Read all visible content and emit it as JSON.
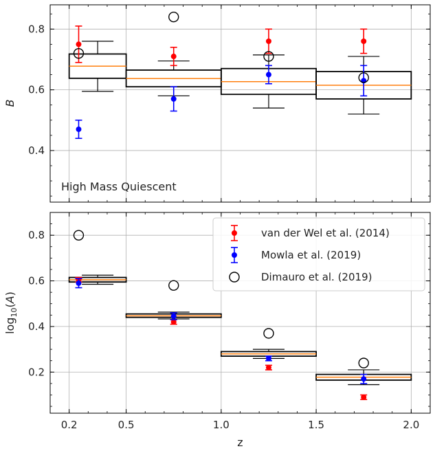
{
  "chart_data": [
    {
      "type": "box+errorbar",
      "annotation": "High Mass Quiescent",
      "ylabel": "B",
      "xlabel": "",
      "xlim": [
        0.1,
        2.1
      ],
      "ylim": [
        0.23,
        0.88
      ],
      "yticks": [
        "0.4",
        "0.6",
        "0.8"
      ],
      "ytick_values": [
        0.4,
        0.6,
        0.8
      ],
      "boxes": [
        {
          "x0": 0.2,
          "x1": 0.5,
          "q1": 0.638,
          "q3": 0.718,
          "median": 0.678,
          "wlo": 0.595,
          "whi": 0.76
        },
        {
          "x0": 0.5,
          "x1": 1.0,
          "q1": 0.61,
          "q3": 0.665,
          "median": 0.637,
          "wlo": 0.58,
          "whi": 0.695
        },
        {
          "x0": 1.0,
          "x1": 1.5,
          "q1": 0.585,
          "q3": 0.67,
          "median": 0.627,
          "wlo": 0.54,
          "whi": 0.715
        },
        {
          "x0": 1.5,
          "x1": 2.0,
          "q1": 0.57,
          "q3": 0.66,
          "median": 0.615,
          "wlo": 0.52,
          "whi": 0.71
        }
      ],
      "series": [
        {
          "name": "van der Wel et al. (2014)",
          "color": "#ff0000",
          "x": [
            0.25,
            0.75,
            1.25,
            1.75
          ],
          "y": [
            0.75,
            0.71,
            0.76,
            0.76
          ],
          "err": [
            0.06,
            0.03,
            0.04,
            0.04
          ]
        },
        {
          "name": "Mowla et al. (2019)",
          "color": "#0000ff",
          "x": [
            0.25,
            0.75,
            1.25,
            1.75
          ],
          "y": [
            0.47,
            0.57,
            0.65,
            0.63
          ],
          "err": [
            0.03,
            0.04,
            0.03,
            0.05
          ]
        },
        {
          "name": "Dimauro et al. (2019)",
          "color": "#000000",
          "x": [
            0.25,
            0.75,
            1.25,
            1.75
          ],
          "y": [
            0.72,
            0.84,
            0.71,
            0.64
          ],
          "err": [
            0,
            0,
            0,
            0
          ]
        }
      ]
    },
    {
      "type": "box+errorbar",
      "annotation": "",
      "ylabel": "log10(A)",
      "xlabel": "z",
      "xlim": [
        0.1,
        2.1
      ],
      "ylim": [
        0.02,
        0.9
      ],
      "xticks": [
        "0.2",
        "0.5",
        "1.0",
        "1.5",
        "2.0"
      ],
      "xtick_values": [
        0.2,
        0.5,
        1.0,
        1.5,
        2.0
      ],
      "yticks": [
        "0.2",
        "0.4",
        "0.6",
        "0.8"
      ],
      "ytick_values": [
        0.2,
        0.4,
        0.6,
        0.8
      ],
      "boxes": [
        {
          "x0": 0.2,
          "x1": 0.5,
          "q1": 0.595,
          "q3": 0.615,
          "median": 0.605,
          "wlo": 0.585,
          "whi": 0.625
        },
        {
          "x0": 0.5,
          "x1": 1.0,
          "q1": 0.44,
          "q3": 0.455,
          "median": 0.447,
          "wlo": 0.433,
          "whi": 0.463
        },
        {
          "x0": 1.0,
          "x1": 1.5,
          "q1": 0.27,
          "q3": 0.29,
          "median": 0.28,
          "wlo": 0.26,
          "whi": 0.3
        },
        {
          "x0": 1.5,
          "x1": 2.0,
          "q1": 0.165,
          "q3": 0.19,
          "median": 0.178,
          "wlo": 0.145,
          "whi": 0.21
        }
      ],
      "series": [
        {
          "name": "van der Wel et al. (2014)",
          "color": "#ff0000",
          "x": [
            0.25,
            0.75,
            1.25,
            1.75
          ],
          "y": [
            0.605,
            0.42,
            0.22,
            0.09
          ],
          "err": [
            0.01,
            0.01,
            0.01,
            0.01
          ]
        },
        {
          "name": "Mowla et al. (2019)",
          "color": "#0000ff",
          "x": [
            0.25,
            0.75,
            1.25,
            1.75
          ],
          "y": [
            0.59,
            0.445,
            0.26,
            0.17
          ],
          "err": [
            0.02,
            0.015,
            0.01,
            0.02
          ]
        },
        {
          "name": "Dimauro et al. (2019)",
          "color": "#000000",
          "x": [
            0.25,
            0.75,
            1.25,
            1.75
          ],
          "y": [
            0.8,
            0.58,
            0.37,
            0.24
          ],
          "err": [
            0,
            0,
            0,
            0
          ]
        }
      ],
      "legend": {
        "placement": "top-right",
        "entries": [
          {
            "label": "van der Wel et al. (2014)",
            "marker": "dot-errorbar",
            "color": "#ff0000"
          },
          {
            "label": "Mowla et al. (2019)",
            "marker": "dot-errorbar",
            "color": "#0000ff"
          },
          {
            "label": "Dimauro et al. (2019)",
            "marker": "open-circle",
            "color": "#000000"
          }
        ]
      }
    }
  ],
  "colors": {
    "median": "#ff7f0e",
    "box": "#000000",
    "grid": "#b0b0b0"
  }
}
